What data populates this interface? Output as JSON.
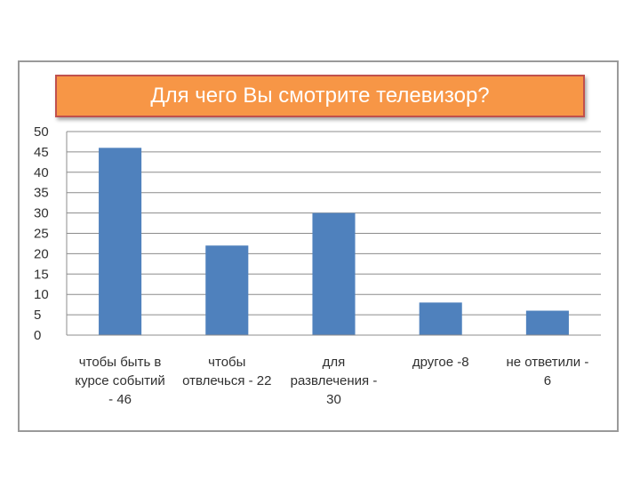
{
  "chart_data": {
    "type": "bar",
    "title": "Для чего Вы смотрите телевизор?",
    "categories": [
      [
        "чтобы быть в",
        "курсе событий",
        "- 46"
      ],
      [
        "чтобы",
        "отвлечься - 22"
      ],
      [
        "для",
        "развлечения -",
        "30"
      ],
      [
        "другое -8"
      ],
      [
        "не ответили -",
        "6"
      ]
    ],
    "values": [
      46,
      22,
      30,
      8,
      6
    ],
    "ylim": [
      0,
      50
    ],
    "yticks": [
      0,
      5,
      10,
      15,
      20,
      25,
      30,
      35,
      40,
      45,
      50
    ],
    "grid": true,
    "legend": "none",
    "colors": {
      "bar": "#4f81bd",
      "title_bg": "#f79646",
      "title_border": "#c0504d",
      "grid": "#8c8c8c"
    }
  }
}
